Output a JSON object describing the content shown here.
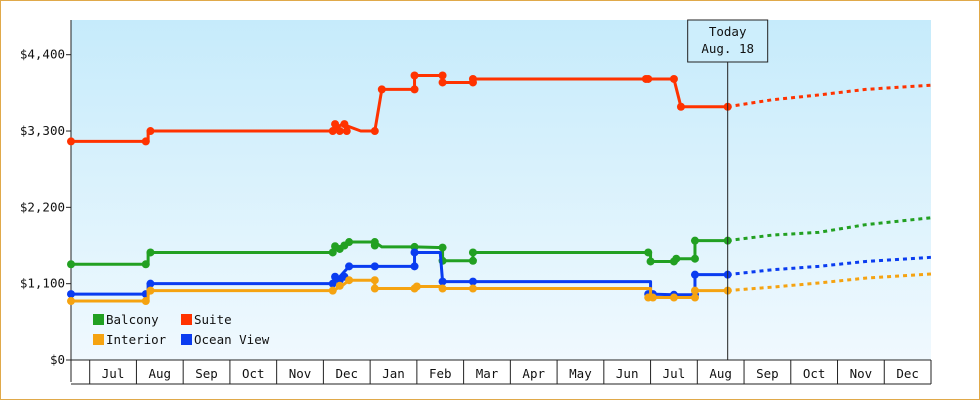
{
  "chart_data": {
    "type": "line",
    "today_label": [
      "Today",
      "Aug. 18"
    ],
    "ylim": [
      0,
      4900
    ],
    "yticks": [
      {
        "value": 0,
        "label": "$0"
      },
      {
        "value": 1100,
        "label": "$1,100"
      },
      {
        "value": 2200,
        "label": "$2,200"
      },
      {
        "value": 3300,
        "label": "$3,300"
      },
      {
        "value": 4400,
        "label": "$4,400"
      }
    ],
    "months": [
      "Jul",
      "Aug",
      "Sep",
      "Oct",
      "Nov",
      "Dec",
      "Jan",
      "Feb",
      "Mar",
      "Apr",
      "May",
      "Jun",
      "Jul",
      "Aug",
      "Sep",
      "Oct",
      "Nov",
      "Dec"
    ],
    "x_range_months": [
      0,
      18.4
    ],
    "today_x": 14.05,
    "series": [
      {
        "name": "Suite",
        "color": "#ff3300",
        "points": [
          [
            0,
            3150
          ],
          [
            1.65,
            3150
          ],
          [
            1.65,
            3300
          ],
          [
            5.6,
            3300
          ],
          [
            5.8,
            3400
          ],
          [
            6.2,
            3300
          ],
          [
            6.5,
            3300
          ],
          [
            6.65,
            3900
          ],
          [
            7.35,
            3900
          ],
          [
            7.35,
            4100
          ],
          [
            7.95,
            4100
          ],
          [
            7.95,
            4000
          ],
          [
            8.6,
            4000
          ],
          [
            8.6,
            4050
          ],
          [
            12.4,
            4050
          ],
          [
            12.9,
            4050
          ],
          [
            13.05,
            3650
          ],
          [
            14.05,
            3650
          ]
        ],
        "markers": [
          [
            0,
            3150
          ],
          [
            1.6,
            3150
          ],
          [
            1.7,
            3300
          ],
          [
            5.6,
            3300
          ],
          [
            5.65,
            3400
          ],
          [
            5.75,
            3300
          ],
          [
            5.85,
            3400
          ],
          [
            5.9,
            3300
          ],
          [
            6.5,
            3300
          ],
          [
            6.65,
            3900
          ],
          [
            7.35,
            3900
          ],
          [
            7.35,
            4100
          ],
          [
            7.95,
            4100
          ],
          [
            7.95,
            4000
          ],
          [
            8.6,
            4000
          ],
          [
            8.6,
            4050
          ],
          [
            12.3,
            4050
          ],
          [
            12.35,
            4050
          ],
          [
            12.9,
            4050
          ],
          [
            13.05,
            3650
          ],
          [
            14.05,
            3650
          ]
        ],
        "forecast": [
          [
            14.05,
            3650
          ],
          [
            15,
            3750
          ],
          [
            16,
            3820
          ],
          [
            17,
            3900
          ],
          [
            18.4,
            3960
          ]
        ]
      },
      {
        "name": "Balcony",
        "color": "#22a022",
        "points": [
          [
            0,
            1380
          ],
          [
            1.65,
            1380
          ],
          [
            1.65,
            1550
          ],
          [
            5.6,
            1550
          ],
          [
            5.8,
            1650
          ],
          [
            6.0,
            1700
          ],
          [
            6.5,
            1700
          ],
          [
            6.65,
            1630
          ],
          [
            7.35,
            1630
          ],
          [
            7.95,
            1620
          ],
          [
            7.95,
            1430
          ],
          [
            8.6,
            1430
          ],
          [
            8.6,
            1550
          ],
          [
            12.4,
            1550
          ],
          [
            12.4,
            1420
          ],
          [
            12.9,
            1420
          ],
          [
            12.9,
            1460
          ],
          [
            13.35,
            1460
          ],
          [
            13.35,
            1720
          ],
          [
            14.05,
            1720
          ]
        ],
        "markers": [
          [
            0,
            1380
          ],
          [
            1.6,
            1380
          ],
          [
            1.7,
            1550
          ],
          [
            5.6,
            1550
          ],
          [
            5.65,
            1640
          ],
          [
            5.75,
            1600
          ],
          [
            5.85,
            1650
          ],
          [
            5.95,
            1700
          ],
          [
            6.5,
            1700
          ],
          [
            6.5,
            1650
          ],
          [
            7.35,
            1630
          ],
          [
            7.95,
            1620
          ],
          [
            7.95,
            1430
          ],
          [
            8.6,
            1430
          ],
          [
            8.6,
            1550
          ],
          [
            12.35,
            1550
          ],
          [
            12.4,
            1420
          ],
          [
            12.9,
            1420
          ],
          [
            12.95,
            1460
          ],
          [
            13.35,
            1460
          ],
          [
            13.35,
            1720
          ],
          [
            14.05,
            1720
          ]
        ],
        "forecast": [
          [
            14.05,
            1720
          ],
          [
            15,
            1800
          ],
          [
            16,
            1840
          ],
          [
            17,
            1950
          ],
          [
            18.4,
            2050
          ]
        ]
      },
      {
        "name": "Ocean View",
        "color": "#0a3cf0",
        "points": [
          [
            0,
            950
          ],
          [
            1.65,
            950
          ],
          [
            1.65,
            1100
          ],
          [
            5.6,
            1100
          ],
          [
            5.75,
            1200
          ],
          [
            5.95,
            1350
          ],
          [
            6.5,
            1350
          ],
          [
            7.35,
            1350
          ],
          [
            7.35,
            1550
          ],
          [
            7.9,
            1550
          ],
          [
            7.95,
            1130
          ],
          [
            8.6,
            1130
          ],
          [
            12.4,
            1130
          ],
          [
            12.4,
            950
          ],
          [
            12.9,
            940
          ],
          [
            13.35,
            940
          ],
          [
            13.35,
            1230
          ],
          [
            14.05,
            1230
          ]
        ],
        "markers": [
          [
            0,
            950
          ],
          [
            1.6,
            950
          ],
          [
            1.7,
            1100
          ],
          [
            5.6,
            1100
          ],
          [
            5.65,
            1200
          ],
          [
            5.75,
            1150
          ],
          [
            5.85,
            1200
          ],
          [
            5.95,
            1350
          ],
          [
            6.5,
            1350
          ],
          [
            7.35,
            1350
          ],
          [
            7.35,
            1550
          ],
          [
            7.95,
            1130
          ],
          [
            8.6,
            1130
          ],
          [
            12.35,
            950
          ],
          [
            12.45,
            950
          ],
          [
            12.9,
            940
          ],
          [
            13.35,
            940
          ],
          [
            13.35,
            1230
          ],
          [
            14.05,
            1230
          ]
        ],
        "forecast": [
          [
            14.05,
            1230
          ],
          [
            15,
            1300
          ],
          [
            16,
            1350
          ],
          [
            17,
            1420
          ],
          [
            18.4,
            1480
          ]
        ]
      },
      {
        "name": "Interior",
        "color": "#f5a311",
        "points": [
          [
            0,
            850
          ],
          [
            1.65,
            850
          ],
          [
            1.65,
            1000
          ],
          [
            5.6,
            1000
          ],
          [
            5.8,
            1070
          ],
          [
            5.95,
            1150
          ],
          [
            6.5,
            1150
          ],
          [
            6.5,
            1030
          ],
          [
            7.35,
            1030
          ],
          [
            7.35,
            1060
          ],
          [
            7.95,
            1060
          ],
          [
            7.95,
            1030
          ],
          [
            8.6,
            1030
          ],
          [
            12.4,
            1030
          ],
          [
            12.4,
            900
          ],
          [
            12.9,
            900
          ],
          [
            13.35,
            900
          ],
          [
            13.35,
            1000
          ],
          [
            14.05,
            1000
          ]
        ],
        "markers": [
          [
            0,
            850
          ],
          [
            1.6,
            850
          ],
          [
            1.7,
            1000
          ],
          [
            5.6,
            1000
          ],
          [
            5.75,
            1070
          ],
          [
            5.95,
            1150
          ],
          [
            6.5,
            1150
          ],
          [
            6.5,
            1030
          ],
          [
            7.35,
            1030
          ],
          [
            7.4,
            1060
          ],
          [
            7.95,
            1030
          ],
          [
            8.6,
            1030
          ],
          [
            12.35,
            900
          ],
          [
            12.45,
            900
          ],
          [
            12.9,
            900
          ],
          [
            13.35,
            900
          ],
          [
            13.35,
            1000
          ],
          [
            14.05,
            1000
          ]
        ],
        "forecast": [
          [
            14.05,
            1000
          ],
          [
            15,
            1050
          ],
          [
            16,
            1110
          ],
          [
            17,
            1180
          ],
          [
            18.4,
            1240
          ]
        ]
      }
    ],
    "legend": [
      {
        "label": "Balcony",
        "color": "#22a022"
      },
      {
        "label": "Suite",
        "color": "#ff3300"
      },
      {
        "label": "Interior",
        "color": "#f5a311"
      },
      {
        "label": "Ocean View",
        "color": "#0a3cf0"
      }
    ]
  }
}
